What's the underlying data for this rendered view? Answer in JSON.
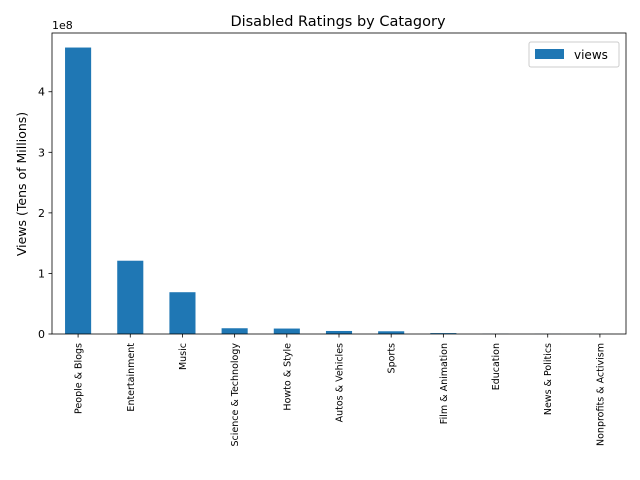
{
  "chart_data": {
    "type": "bar",
    "title": "Disabled Ratings by Catagory",
    "xlabel": "",
    "ylabel": "Views (Tens of Millions)",
    "offset_text": "1e8",
    "categories": [
      "People & Blogs",
      "Entertainment",
      "Music",
      "Science & Technology",
      "Howto & Style",
      "Autos & Vehicles",
      "Sports",
      "Film & Animation",
      "Education",
      "News & Politics",
      "Nonprofits & Activism"
    ],
    "series": [
      {
        "name": "views",
        "color": "#1f77b4",
        "values": [
          473000000,
          121000000,
          69000000,
          9500000,
          9000000,
          5000000,
          4500000,
          1500000,
          300000,
          200000,
          100000
        ]
      }
    ],
    "ylim": [
      0,
      497000000
    ],
    "yticks": [
      0,
      100000000,
      200000000,
      300000000,
      400000000
    ],
    "ytick_labels": [
      "0",
      "1",
      "2",
      "3",
      "4"
    ],
    "grid": false,
    "legend_position": "upper right"
  }
}
